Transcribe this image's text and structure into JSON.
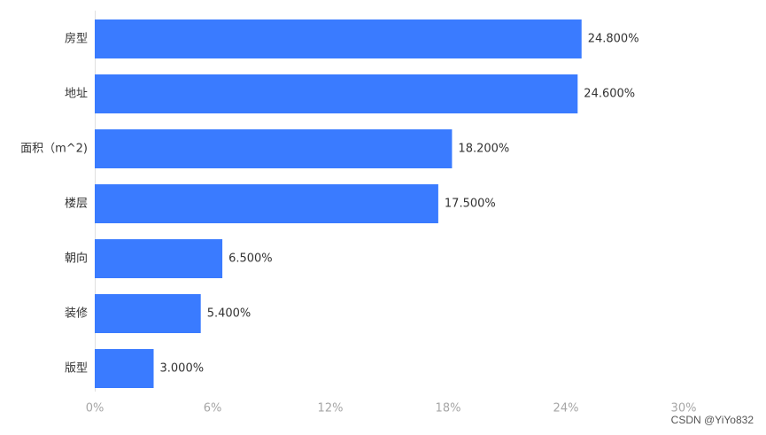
{
  "chart_data": {
    "type": "bar",
    "orientation": "horizontal",
    "categories": [
      "房型",
      "地址",
      "面积（m^2)",
      "楼层",
      "朝向",
      "装修",
      "版型"
    ],
    "values": [
      24.8,
      24.6,
      18.2,
      17.5,
      6.5,
      5.4,
      3.0
    ],
    "value_labels": [
      "24.800%",
      "24.600%",
      "18.200%",
      "17.500%",
      "6.500%",
      "5.400%",
      "3.000%"
    ],
    "x_ticks": [
      "0%",
      "6%",
      "12%",
      "18%",
      "24%",
      "30%"
    ],
    "xlim": [
      0,
      30
    ],
    "grid": false,
    "bar_color": "#3a7bff"
  },
  "watermark": "CSDN @YiYo832"
}
